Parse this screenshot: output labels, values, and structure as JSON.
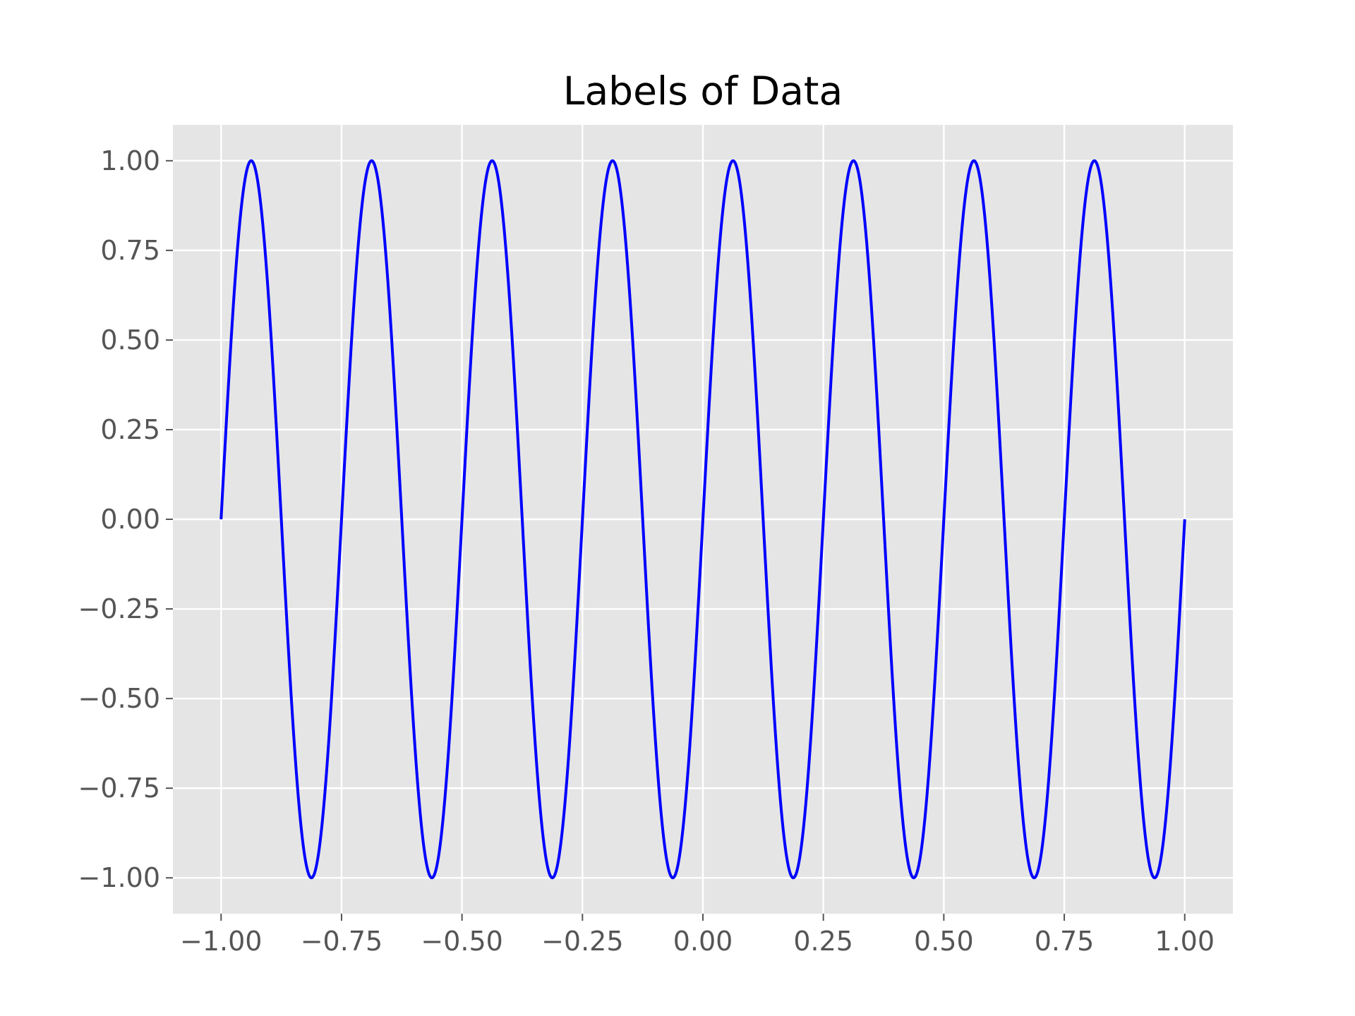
{
  "chart_data": {
    "type": "line",
    "title": "Labels of Data",
    "xlabel": "",
    "ylabel": "",
    "xlim": [
      -1.1,
      1.1
    ],
    "ylim": [
      -1.1,
      1.1
    ],
    "x_ticks": [
      -1.0,
      -0.75,
      -0.5,
      -0.25,
      0.0,
      0.25,
      0.5,
      0.75,
      1.0
    ],
    "x_tick_labels": [
      "−1.00",
      "−0.75",
      "−0.50",
      "−0.25",
      "0.00",
      "0.25",
      "0.50",
      "0.75",
      "1.00"
    ],
    "y_ticks": [
      1.0,
      0.75,
      0.5,
      0.25,
      0.0,
      -0.25,
      -0.5,
      -0.75,
      -1.0
    ],
    "y_tick_labels": [
      "1.00",
      "0.75",
      "0.50",
      "0.25",
      "0.00",
      "−0.25",
      "−0.50",
      "−0.75",
      "−1.00"
    ],
    "grid": true,
    "style": "ggplot",
    "background_color": "#e5e5e5",
    "grid_color": "#ffffff",
    "series": [
      {
        "color": "#0000ff",
        "function": "sin(8*pi*x)",
        "x_range": [
          -1.0,
          1.0
        ],
        "x": [
          -1.0,
          -0.9375,
          -0.875,
          -0.8125,
          -0.75,
          -0.6875,
          -0.625,
          -0.5625,
          -0.5,
          -0.4375,
          -0.375,
          -0.3125,
          -0.25,
          -0.1875,
          -0.125,
          -0.0625,
          0.0,
          0.0625,
          0.125,
          0.1875,
          0.25,
          0.3125,
          0.375,
          0.4375,
          0.5,
          0.5625,
          0.625,
          0.6875,
          0.75,
          0.8125,
          0.875,
          0.9375,
          1.0
        ],
        "y": [
          0.0,
          1.0,
          0.0,
          -1.0,
          0.0,
          1.0,
          0.0,
          -1.0,
          0.0,
          1.0,
          0.0,
          -1.0,
          0.0,
          1.0,
          0.0,
          -1.0,
          0.0,
          1.0,
          0.0,
          -1.0,
          0.0,
          1.0,
          0.0,
          -1.0,
          0.0,
          1.0,
          0.0,
          -1.0,
          0.0,
          1.0,
          0.0,
          -1.0,
          0.0
        ]
      }
    ]
  }
}
